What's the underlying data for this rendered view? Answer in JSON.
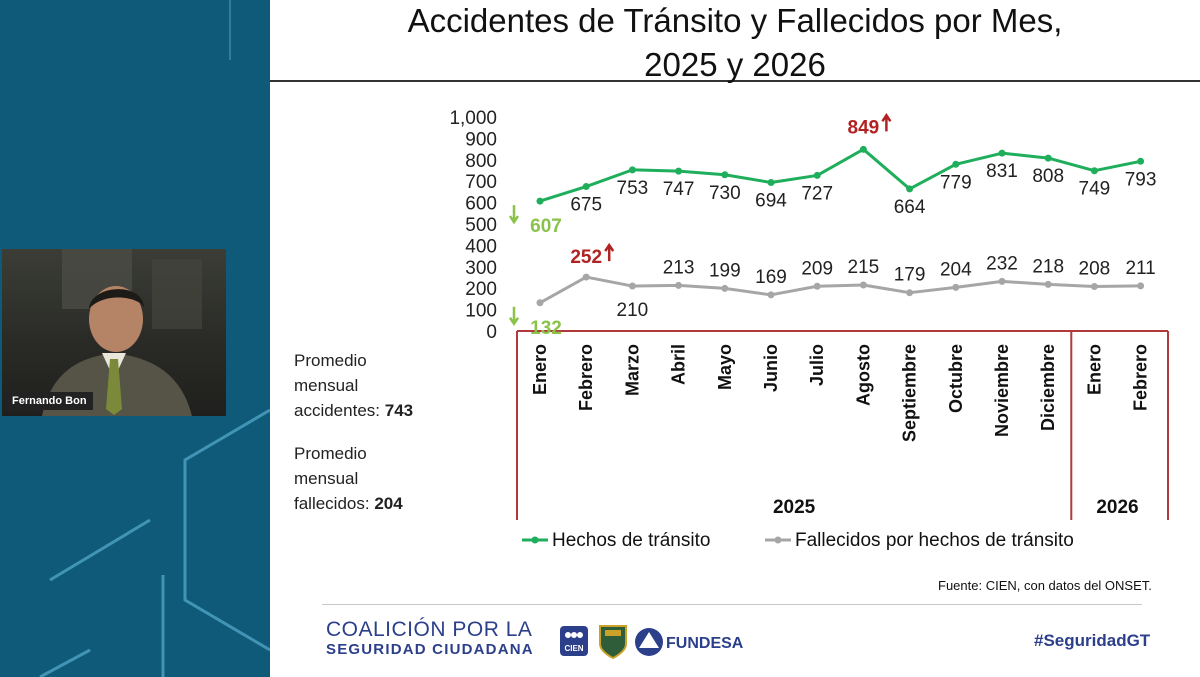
{
  "participant": {
    "name": "Fernando Bon"
  },
  "slide": {
    "title_line1": "Accidentes de Tránsito y Fallecidos por Mes,",
    "title_line2": "2025 y 2026",
    "stats": {
      "accidents_label_1": "Promedio",
      "accidents_label_2": "mensual",
      "accidents_label_3": "accidentes:",
      "accidents_value": "743",
      "deaths_label_1": "Promedio",
      "deaths_label_2": "mensual",
      "deaths_label_3": "fallecidos:",
      "deaths_value": "204"
    },
    "source": "Fuente: CIEN, con datos del ONSET.",
    "footer": {
      "org_line1": "COALICIÓN POR LA",
      "org_line2": "SEGURIDAD CIUDADANA",
      "logo_cien": "CIEN",
      "logo_fundesa": "FUNDESA",
      "hashtag": "#SeguridadGT"
    }
  },
  "colors": {
    "accidents": "#1fae5b",
    "deaths": "#a6a6a6",
    "highlight_up": "#b22222",
    "highlight_down": "#8bc34a",
    "frame": "#b03a3a",
    "brand": "#2c3f8a"
  },
  "chart_data": {
    "type": "line",
    "categories": [
      "Enero",
      "Febrero",
      "Marzo",
      "Abril",
      "Mayo",
      "Junio",
      "Julio",
      "Agosto",
      "Septiembre",
      "Octubre",
      "Noviembre",
      "Diciembre",
      "Enero",
      "Febrero"
    ],
    "year_groups": [
      {
        "label": "2025",
        "count": 12
      },
      {
        "label": "2026",
        "count": 2
      }
    ],
    "series": [
      {
        "name": "Hechos de tránsito",
        "values": [
          607,
          675,
          753,
          747,
          730,
          694,
          727,
          849,
          664,
          779,
          831,
          808,
          749,
          793
        ]
      },
      {
        "name": "Fallecidos por hechos de tránsito",
        "values": [
          132,
          252,
          210,
          213,
          199,
          169,
          209,
          215,
          179,
          204,
          232,
          218,
          208,
          211
        ]
      }
    ],
    "y_ticks": [
      "0",
      "100",
      "200",
      "300",
      "400",
      "500",
      "600",
      "700",
      "800",
      "900",
      "1,000"
    ],
    "ylim": [
      0,
      1000
    ],
    "highlights": [
      {
        "series": 0,
        "index": 0,
        "direction": "down"
      },
      {
        "series": 0,
        "index": 7,
        "direction": "up"
      },
      {
        "series": 1,
        "index": 0,
        "direction": "down"
      },
      {
        "series": 1,
        "index": 1,
        "direction": "up"
      }
    ],
    "grid": false,
    "legend": "bottom"
  }
}
